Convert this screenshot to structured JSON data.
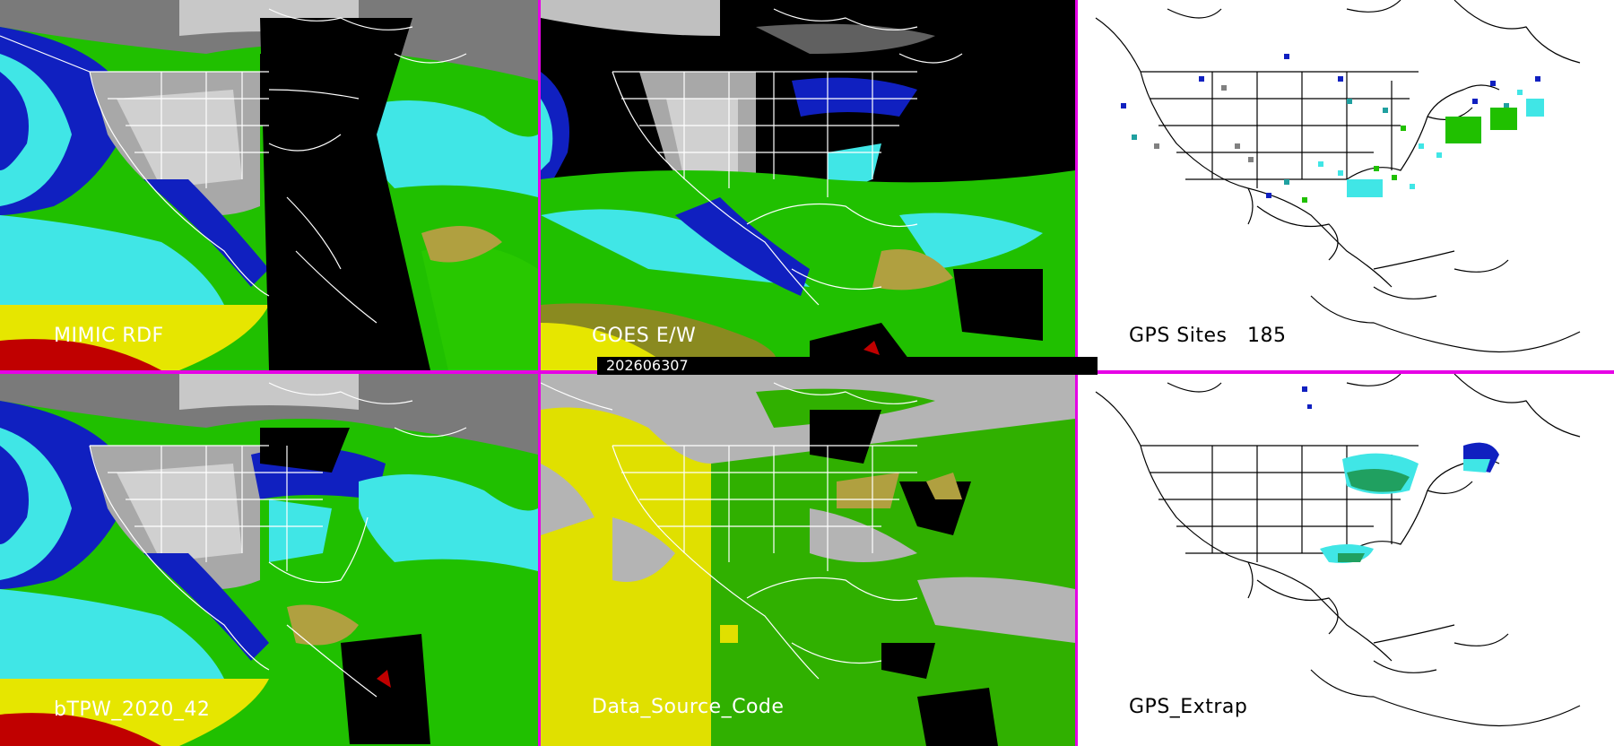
{
  "panels": {
    "top_left": {
      "label": "MIMIC RDF"
    },
    "top_mid": {
      "label": "GOES E/W"
    },
    "top_right": {
      "label": "GPS Sites   185"
    },
    "bot_left": {
      "label": "bTPW_2020_42"
    },
    "bot_mid": {
      "label": "Data_Source_Code"
    },
    "bot_right": {
      "label": "GPS_Extrap"
    }
  },
  "timestamp": "202606307",
  "colors": {
    "border": "#e600e6",
    "tpw_red": "#c00000",
    "tpw_yellow": "#e6e600",
    "tpw_green": "#20c000",
    "tpw_cyan": "#40e6e6",
    "tpw_blue": "#1020c0",
    "tpw_gray": "#a0a0a0",
    "source_gray": "#b4b4b4",
    "source_yellow": "#e0e000",
    "source_green": "#30b000"
  }
}
